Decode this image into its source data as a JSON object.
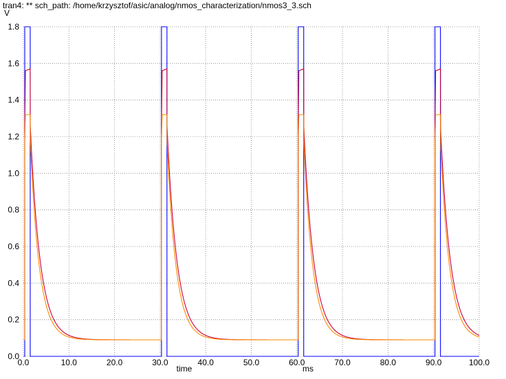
{
  "window": {
    "title": "tran4: ** sch_path: /home/krzysztof/asic/analog/nmos_characterization/nmos3_3.sch"
  },
  "chart_data": {
    "type": "line",
    "title": "tran4: ** sch_path: /home/krzysztof/asic/analog/nmos_characterization/nmos3_3.sch",
    "xlabel": "time",
    "xunit": "ms",
    "ylabel": "V",
    "xlim": [
      0,
      100
    ],
    "ylim": [
      0,
      1.8
    ],
    "x_ticks": [
      0,
      10,
      20,
      30,
      40,
      50,
      60,
      70,
      80,
      90,
      100
    ],
    "x_tick_labels": [
      "0.0",
      "10.0",
      "20.0",
      "30.0",
      "40.0",
      "50.0",
      "60.0",
      "70.0",
      "80.0",
      "90.0",
      "100.0"
    ],
    "y_ticks": [
      0,
      0.2,
      0.4,
      0.6,
      0.8,
      1.0,
      1.2,
      1.4,
      1.6,
      1.8
    ],
    "y_tick_labels": [
      "0.0",
      "0.2",
      "0.4",
      "0.6",
      "0.8",
      "1.0",
      "1.2",
      "1.4",
      "1.6",
      "1.8"
    ],
    "grid": true,
    "grid_style": "dotted",
    "period_ms": 30,
    "series": [
      {
        "color": "#0000ff",
        "kind": "pulse",
        "pulse_start_ms": [
          0.3,
          30.3,
          60.3,
          90.3
        ],
        "pulse_width_ms": 1.2,
        "low": 0.0,
        "high": 1.8
      },
      {
        "color": "#cc0033",
        "kind": "exp_decay",
        "peak": 1.56,
        "plateau": 1.57,
        "start": 1.26,
        "floor": 0.09,
        "pulse_start_ms": [
          0.3,
          30.3,
          60.3,
          90.3
        ],
        "pulse_width_ms": 1.2,
        "tau_ms": 2.2
      },
      {
        "color": "#ff8800",
        "kind": "exp_decay",
        "peak": 1.32,
        "plateau": 1.32,
        "start": 1.18,
        "floor": 0.09,
        "pulse_start_ms": [
          0.3,
          30.3,
          60.3,
          90.3
        ],
        "pulse_width_ms": 1.2,
        "tau_ms": 2.0
      }
    ]
  }
}
